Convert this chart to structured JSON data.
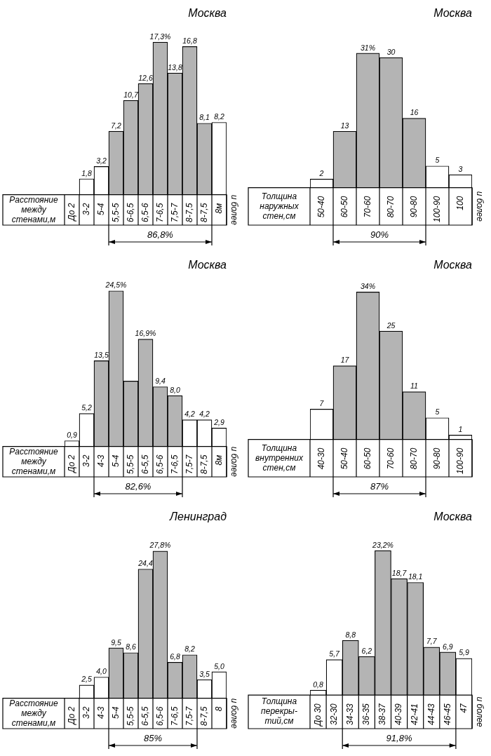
{
  "chart_data": [
    {
      "type": "bar",
      "title": "Москва",
      "xlabel": "Расстояние между стенами,м",
      "categories": [
        "До 2",
        "3-2",
        "5-4",
        "5,5-5",
        "6-6,5",
        "6,5-6",
        "7-6,5",
        "7,5-7",
        "8-7,5",
        "8-7,5",
        "8м"
      ],
      "values": [
        null,
        1.8,
        3.2,
        7.2,
        10.7,
        12.6,
        17.3,
        13.8,
        16.8,
        8.1,
        8.2
      ],
      "value_labels": [
        null,
        "1,8",
        "3,2",
        "7,2",
        "10,7",
        "12,6",
        "17,3%",
        "13,8",
        "16,8",
        "8,1",
        "8,2"
      ],
      "colors": [
        "#ffffff",
        "#ffffff",
        "#ffffff",
        "#b4b4b4",
        "#b4b4b4",
        "#b4b4b4",
        "#b4b4b4",
        "#b4b4b4",
        "#b4b4b4",
        "#b4b4b4",
        "#ffffff"
      ],
      "annotations": [
        "86,8%",
        "и более"
      ]
    },
    {
      "type": "bar",
      "title": "Москва",
      "xlabel": "Толщина наружных стен,см",
      "categories": [
        "50-40",
        "60-50",
        "70-60",
        "80-70",
        "90-80",
        "100-90",
        "100"
      ],
      "values": [
        2,
        13,
        31,
        30,
        16,
        5,
        3
      ],
      "value_labels": [
        "2",
        "13",
        "31%",
        "30",
        "16",
        "5",
        "3"
      ],
      "colors": [
        "#ffffff",
        "#b4b4b4",
        "#b4b4b4",
        "#b4b4b4",
        "#b4b4b4",
        "#ffffff",
        "#ffffff"
      ],
      "annotations": [
        "90%",
        "и более"
      ]
    },
    {
      "type": "bar",
      "title": "Москва",
      "xlabel": "Расстояние между стенами,м",
      "categories": [
        "До 2",
        "3-2",
        "4-3",
        "5-4",
        "5,5-5",
        "6-5,5",
        "6,5-6",
        "7-6,5",
        "7,5-7",
        "8-7,5",
        "8м"
      ],
      "values": [
        0.9,
        5.2,
        13.5,
        24.5,
        10.3,
        16.9,
        9.4,
        8.0,
        4.2,
        4.2,
        2.9
      ],
      "value_labels": [
        "0,9",
        "5,2",
        "13,5",
        "24,5%",
        null,
        "16,9%",
        "9,4",
        "8,0",
        "4,2",
        "4,2",
        "2,9"
      ],
      "colors": [
        "#ffffff",
        "#ffffff",
        "#b4b4b4",
        "#b4b4b4",
        "#b4b4b4",
        "#b4b4b4",
        "#b4b4b4",
        "#b4b4b4",
        "#ffffff",
        "#ffffff",
        "#ffffff"
      ],
      "annotations": [
        "82,6%",
        "и более"
      ]
    },
    {
      "type": "bar",
      "title": "Москва",
      "xlabel": "Толщина внутренних стен,см",
      "categories": [
        "40-30",
        "50-40",
        "60-50",
        "70-60",
        "80-70",
        "90-80",
        "100-90"
      ],
      "values": [
        7,
        17,
        34,
        25,
        11,
        5,
        1
      ],
      "value_labels": [
        "7",
        "17",
        "34%",
        "25",
        "11",
        "5",
        "1"
      ],
      "colors": [
        "#ffffff",
        "#b4b4b4",
        "#b4b4b4",
        "#b4b4b4",
        "#b4b4b4",
        "#ffffff",
        "#ffffff"
      ],
      "annotations": [
        "87%"
      ]
    },
    {
      "type": "bar",
      "title": "Ленинград",
      "xlabel": "Расстояние между стенами,м",
      "categories": [
        "До 2",
        "3-2",
        "4-3",
        "5-4",
        "5,5-5",
        "6-5,5",
        "6,5-6",
        "7-6,5",
        "7,5-7",
        "8-7,5",
        "8"
      ],
      "values": [
        null,
        2.5,
        4.0,
        9.5,
        8.6,
        24.4,
        27.8,
        6.8,
        8.2,
        3.5,
        5.0
      ],
      "value_labels": [
        null,
        "2,5",
        "4,0",
        "9,5",
        "8,6",
        "24,4",
        "27,8%",
        "6,8",
        "8,2",
        "3,5",
        "5,0"
      ],
      "colors": [
        "#ffffff",
        "#ffffff",
        "#ffffff",
        "#b4b4b4",
        "#b4b4b4",
        "#b4b4b4",
        "#b4b4b4",
        "#b4b4b4",
        "#b4b4b4",
        "#ffffff",
        "#ffffff"
      ],
      "annotations": [
        "85%",
        "и более"
      ]
    },
    {
      "type": "bar",
      "title": "Москва",
      "xlabel": "Толщина перекры- тий,см",
      "categories": [
        "До 30",
        "32-30",
        "34-33",
        "36-35",
        "38-37",
        "40-39",
        "42-41",
        "44-43",
        "46-45",
        "47"
      ],
      "values": [
        0.8,
        5.7,
        8.8,
        6.2,
        23.2,
        18.7,
        18.1,
        7.7,
        6.9,
        5.9
      ],
      "value_labels": [
        "0,8",
        "5,7",
        "8,8",
        "6,2",
        "23,2%",
        "18,7",
        "18,1",
        "7,7",
        "6,9",
        "5,9"
      ],
      "colors": [
        "#ffffff",
        "#ffffff",
        "#b4b4b4",
        "#b4b4b4",
        "#b4b4b4",
        "#b4b4b4",
        "#b4b4b4",
        "#b4b4b4",
        "#b4b4b4",
        "#ffffff"
      ],
      "annotations": [
        "91,8%",
        "и более"
      ]
    }
  ]
}
